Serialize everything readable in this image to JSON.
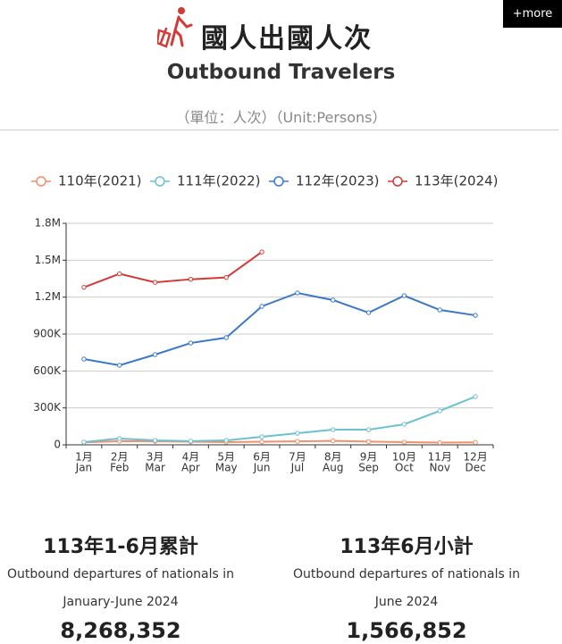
{
  "header": {
    "button": "+more",
    "title": "國人出國人次",
    "subtitle": "Outbound Travelers",
    "unit": "（單位：人次）（Unit:Persons）"
  },
  "chart_data": {
    "type": "line",
    "categories": [
      "1月",
      "2月",
      "3月",
      "4月",
      "5月",
      "6月",
      "7月",
      "8月",
      "9月",
      "10月",
      "11月",
      "12月"
    ],
    "category_sublabels": [
      "Jan",
      "Feb",
      "Mar",
      "Apr",
      "May",
      "Jun",
      "Jul",
      "Aug",
      "Sep",
      "Oct",
      "Nov",
      "Dec"
    ],
    "series": [
      {
        "name": "110年(2021)",
        "color": "#f0906d",
        "values": [
          20000,
          30000,
          28000,
          25000,
          22000,
          25000,
          28000,
          32000,
          26000,
          22000,
          18000,
          20000
        ]
      },
      {
        "name": "111年(2022)",
        "color": "#6cc0d0",
        "values": [
          22000,
          51000,
          36000,
          30000,
          36000,
          65000,
          94000,
          123000,
          123000,
          167000,
          276000,
          392000
        ]
      },
      {
        "name": "112年(2023)",
        "color": "#3b78c8",
        "values": [
          697000,
          646000,
          733000,
          827000,
          871000,
          1125000,
          1234000,
          1176000,
          1074000,
          1212000,
          1096000,
          1052000
        ]
      },
      {
        "name": "113年(2024)",
        "color": "#d43a35",
        "values": [
          1280000,
          1390000,
          1320000,
          1345000,
          1360000,
          1566852,
          null,
          null,
          null,
          null,
          null,
          null
        ]
      }
    ],
    "ylim": [
      0,
      1800000
    ],
    "yticks": [
      0,
      {
        "value": 300000,
        "label": "300K"
      },
      {
        "value": 600000,
        "label": "600K"
      },
      {
        "value": 900000,
        "label": "900K"
      },
      {
        "value": 1200000,
        "label": "1.2M"
      },
      {
        "value": 1500000,
        "label": "1.5M"
      },
      {
        "value": 1800000,
        "label": "1.8M"
      }
    ],
    "grid": true,
    "legend": "top"
  },
  "stats": [
    {
      "title": "113年1-6月累計",
      "line1": "Outbound departures of nationals in",
      "line2": "January-June 2024",
      "value": "8,268,352"
    },
    {
      "title": "113年6月小計",
      "line1": "Outbound departures of nationals in",
      "line2": "June 2024",
      "value": "1,566,852"
    }
  ]
}
